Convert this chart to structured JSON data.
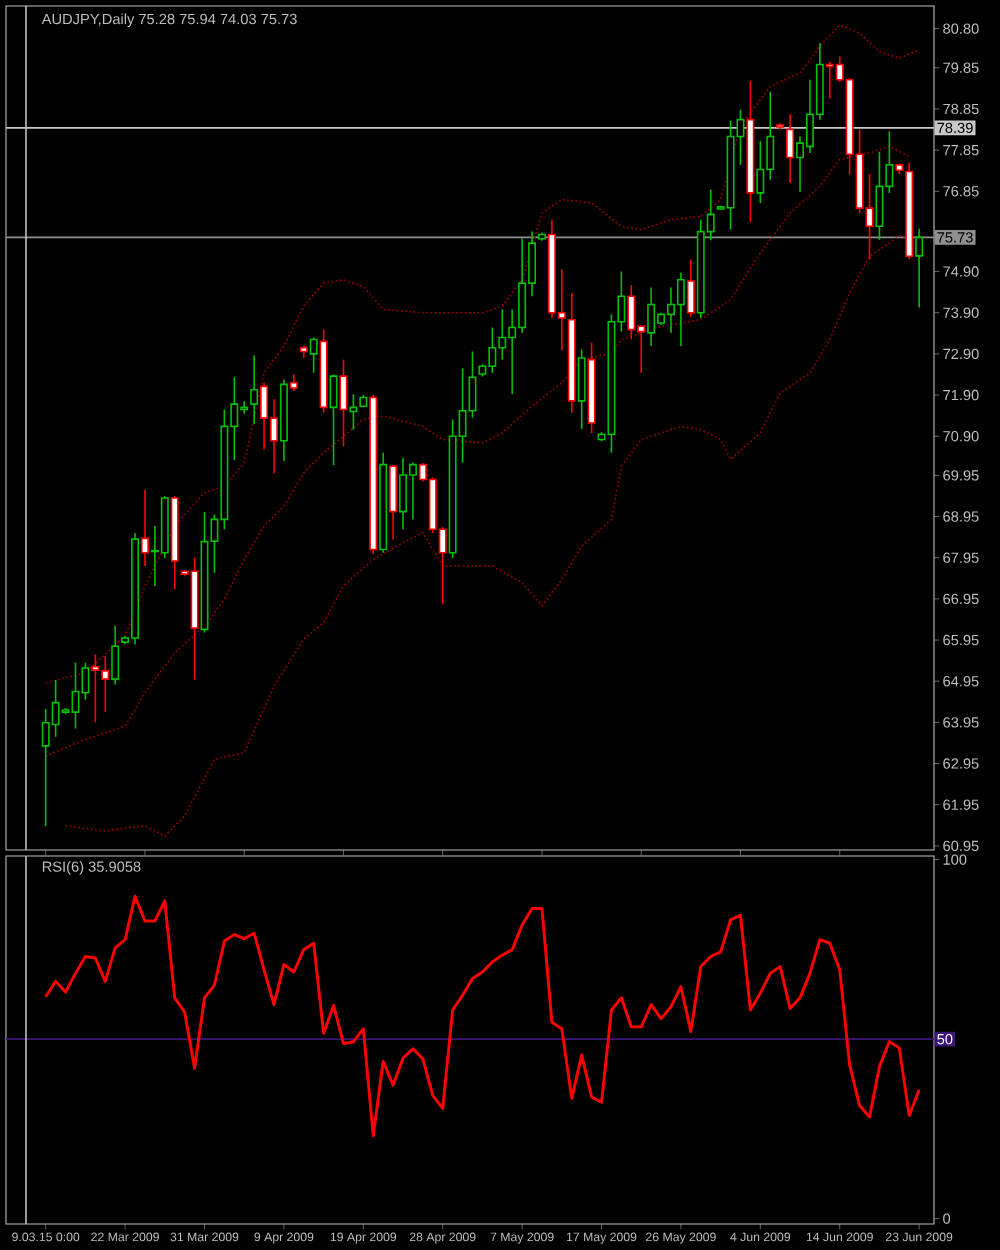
{
  "chart_data": [
    {
      "type": "candlestick",
      "title": "AUDJPY,Daily 75.28 75.94 74.03 75.73",
      "categories": [
        null,
        null,
        null,
        null,
        null,
        null,
        null,
        null,
        null,
        null,
        null,
        null,
        null,
        null,
        null,
        null,
        null,
        null,
        null,
        null,
        null,
        null,
        null,
        null,
        null,
        null,
        null,
        null,
        null,
        null,
        null,
        null,
        null,
        null,
        null,
        null,
        null,
        null,
        null,
        null,
        null,
        null,
        null,
        null,
        null,
        null,
        null,
        null,
        null,
        null,
        null,
        null,
        null,
        null,
        null,
        null,
        null,
        null,
        null,
        null,
        null,
        null,
        null,
        null,
        null,
        null,
        null,
        null,
        null,
        null,
        null,
        null,
        null,
        null,
        null,
        null,
        null,
        null,
        null,
        null,
        null,
        null,
        null,
        null,
        null,
        null,
        null,
        null,
        null
      ],
      "ohlc": [
        [
          63.38,
          64.27,
          61.43,
          63.94
        ],
        [
          63.9,
          64.98,
          63.6,
          64.43
        ],
        [
          64.2,
          64.3,
          64.15,
          64.25
        ],
        [
          64.2,
          65.4,
          63.8,
          64.7
        ],
        [
          64.67,
          65.4,
          64.5,
          65.27
        ],
        [
          65.3,
          65.6,
          63.95,
          65.22
        ],
        [
          65.2,
          65.56,
          64.2,
          65.0
        ],
        [
          65.0,
          66.3,
          64.87,
          65.8
        ],
        [
          65.9,
          66.05,
          65.85,
          66.0
        ],
        [
          66.0,
          68.55,
          65.84,
          68.4
        ],
        [
          68.42,
          69.6,
          67.75,
          68.07
        ],
        [
          68.1,
          68.72,
          67.26,
          68.12
        ],
        [
          68.07,
          69.45,
          67.94,
          69.4
        ],
        [
          69.4,
          69.45,
          67.18,
          67.87
        ],
        [
          67.62,
          67.65,
          67.5,
          67.55
        ],
        [
          67.62,
          67.95,
          64.99,
          66.24
        ],
        [
          66.21,
          69.06,
          66.13,
          68.34
        ],
        [
          68.35,
          69.0,
          67.58,
          68.88
        ],
        [
          68.88,
          71.55,
          68.64,
          71.14
        ],
        [
          71.14,
          72.33,
          70.32,
          71.68
        ],
        [
          71.55,
          71.75,
          71.45,
          71.6
        ],
        [
          71.68,
          72.87,
          71.2,
          72.03
        ],
        [
          72.11,
          72.2,
          70.58,
          71.34
        ],
        [
          71.34,
          71.8,
          70.0,
          70.79
        ],
        [
          70.79,
          72.28,
          70.3,
          72.16
        ],
        [
          72.2,
          72.4,
          72.0,
          72.07
        ],
        [
          73.05,
          73.1,
          72.8,
          72.96
        ],
        [
          72.9,
          73.3,
          72.44,
          73.25
        ],
        [
          73.2,
          73.49,
          71.47,
          71.6
        ],
        [
          71.6,
          72.4,
          70.2,
          72.36
        ],
        [
          72.36,
          72.76,
          70.66,
          71.55
        ],
        [
          71.5,
          71.92,
          71.06,
          71.6
        ],
        [
          71.63,
          71.9,
          71.6,
          71.84
        ],
        [
          71.84,
          71.9,
          68.04,
          68.15
        ],
        [
          68.15,
          70.5,
          68.07,
          70.21
        ],
        [
          70.17,
          70.2,
          68.39,
          69.07
        ],
        [
          69.07,
          70.37,
          68.64,
          69.96
        ],
        [
          69.96,
          70.26,
          68.88,
          70.21
        ],
        [
          70.21,
          70.25,
          69.8,
          69.85
        ],
        [
          69.85,
          69.9,
          68.55,
          68.64
        ],
        [
          68.64,
          68.7,
          66.82,
          68.07
        ],
        [
          68.07,
          71.31,
          67.94,
          70.9
        ],
        [
          70.9,
          72.55,
          70.26,
          71.52
        ],
        [
          71.52,
          72.96,
          71.35,
          72.33
        ],
        [
          72.41,
          72.65,
          72.35,
          72.6
        ],
        [
          72.6,
          73.54,
          72.44,
          73.05
        ],
        [
          73.05,
          73.98,
          72.76,
          73.3
        ],
        [
          73.3,
          73.98,
          71.92,
          73.54
        ],
        [
          73.54,
          75.71,
          73.41,
          74.62
        ],
        [
          74.62,
          75.87,
          74.3,
          75.59
        ],
        [
          75.7,
          75.85,
          75.65,
          75.8
        ],
        [
          75.8,
          76.16,
          73.77,
          73.9
        ],
        [
          73.9,
          74.95,
          72.99,
          73.77
        ],
        [
          73.73,
          74.38,
          71.47,
          71.76
        ],
        [
          71.76,
          73.01,
          71.08,
          72.8
        ],
        [
          72.76,
          73.17,
          70.98,
          71.22
        ],
        [
          70.82,
          71.0,
          70.78,
          70.95
        ],
        [
          70.95,
          73.86,
          70.5,
          73.68
        ],
        [
          73.68,
          74.9,
          73.44,
          74.3
        ],
        [
          74.3,
          74.57,
          73.25,
          73.49
        ],
        [
          73.57,
          73.6,
          72.44,
          73.44
        ],
        [
          73.41,
          74.51,
          73.09,
          74.1
        ],
        [
          73.65,
          73.9,
          73.6,
          73.86
        ],
        [
          73.86,
          74.51,
          73.41,
          74.1
        ],
        [
          74.1,
          74.87,
          73.09,
          74.7
        ],
        [
          74.67,
          75.19,
          73.8,
          73.9
        ],
        [
          73.9,
          76.16,
          73.77,
          75.87
        ],
        [
          75.87,
          76.89,
          75.66,
          76.29
        ],
        [
          76.42,
          76.5,
          76.4,
          76.47
        ],
        [
          76.45,
          78.56,
          75.92,
          78.18
        ],
        [
          78.18,
          78.83,
          77.49,
          78.59
        ],
        [
          78.59,
          79.53,
          76.1,
          76.81
        ],
        [
          76.81,
          78.07,
          76.56,
          77.38
        ],
        [
          77.38,
          79.27,
          77.13,
          78.18
        ],
        [
          78.46,
          78.5,
          78.35,
          78.41
        ],
        [
          78.35,
          78.72,
          77.05,
          77.67
        ],
        [
          77.67,
          78.18,
          76.84,
          78.02
        ],
        [
          77.94,
          79.56,
          77.78,
          78.72
        ],
        [
          78.72,
          80.45,
          78.59,
          79.93
        ],
        [
          79.93,
          80.0,
          79.1,
          79.88
        ],
        [
          79.93,
          80.12,
          79.5,
          79.56
        ],
        [
          79.56,
          79.6,
          77.26,
          77.75
        ],
        [
          77.75,
          78.35,
          76.32,
          76.44
        ],
        [
          76.44,
          77.26,
          75.19,
          76.0
        ],
        [
          76.0,
          77.81,
          75.67,
          76.97
        ],
        [
          76.97,
          78.3,
          76.81,
          77.49
        ],
        [
          77.49,
          77.52,
          77.26,
          77.36
        ],
        [
          77.33,
          77.54,
          75.2,
          75.27
        ],
        [
          75.28,
          75.94,
          74.03,
          75.73
        ]
      ],
      "colors": [
        "#00c000",
        "#00c000",
        "#00c000",
        "#00c000",
        "#00c000",
        "#ff0000",
        "#ff0000",
        "#00c000",
        "#00c000",
        "#00c000",
        "#ff0000",
        "#00c000",
        "#00c000",
        "#ff0000",
        "#ff0000",
        "#ff0000",
        "#00c000",
        "#00c000",
        "#00c000",
        "#00c000",
        "#00c000",
        "#00c000",
        "#ff0000",
        "#ff0000",
        "#00c000",
        "#ff0000",
        "#ff0000",
        "#00c000",
        "#ff0000",
        "#00c000",
        "#ff0000",
        "#00c000",
        "#00c000",
        "#ff0000",
        "#00c000",
        "#ff0000",
        "#00c000",
        "#00c000",
        "#ff0000",
        "#ff0000",
        "#ff0000",
        "#00c000",
        "#00c000",
        "#00c000",
        "#00c000",
        "#00c000",
        "#00c000",
        "#00c000",
        "#00c000",
        "#00c000",
        "#00c000",
        "#ff0000",
        "#ff0000",
        "#ff0000",
        "#00c000",
        "#ff0000",
        "#00c000",
        "#00c000",
        "#00c000",
        "#ff0000",
        "#ff0000",
        "#00c000",
        "#00c000",
        "#00c000",
        "#00c000",
        "#ff0000",
        "#00c000",
        "#00c000",
        "#00c000",
        "#00c000",
        "#00c000",
        "#ff0000",
        "#00c000",
        "#00c000",
        "#ff0000",
        "#ff0000",
        "#00c000",
        "#00c000",
        "#00c000",
        "#ff0000",
        "#ff0000",
        "#ff0000",
        "#ff0000",
        "#ff0000",
        "#00c000",
        "#00c000",
        "#ff0000",
        "#ff0000",
        "#00c000"
      ],
      "series": [
        {
          "type": "line",
          "color": "#a00000",
          "line_style": "dotted",
          "values": [
            64.91,
            null,
            null,
            null,
            65.16,
            null,
            null,
            null,
            66.05,
            null,
            67.26,
            null,
            null,
            68.72,
            null,
            null,
            69.53,
            null,
            69.69,
            null,
            70.25,
            null,
            72.44,
            null,
            73.09,
            null,
            74.06,
            null,
            74.62,
            null,
            74.7,
            null,
            74.54,
            null,
            73.98,
            null,
            null,
            null,
            73.9,
            null,
            null,
            null,
            null,
            null,
            73.9,
            null,
            74.06,
            null,
            74.7,
            null,
            76.32,
            null,
            76.65,
            null,
            null,
            76.57,
            null,
            null,
            76.0,
            null,
            75.92,
            null,
            null,
            76.16,
            null,
            null,
            76.24,
            null,
            76.65,
            null,
            78.43,
            null,
            null,
            79.4,
            null,
            null,
            79.72,
            null,
            80.37,
            null,
            80.89,
            null,
            80.69,
            null,
            80.24,
            null,
            80.08,
            null,
            80.29
          ]
        },
        {
          "type": "line",
          "color": "#a00000",
          "line_style": "dotted",
          "values": [
            63.13,
            null,
            null,
            null,
            63.54,
            null,
            null,
            null,
            63.86,
            null,
            64.67,
            null,
            null,
            65.64,
            null,
            null,
            66.29,
            null,
            66.94,
            null,
            67.91,
            null,
            68.72,
            null,
            69.2,
            null,
            70.01,
            null,
            70.5,
            null,
            70.9,
            null,
            71.31,
            null,
            71.39,
            null,
            null,
            null,
            71.14,
            null,
            70.82,
            null,
            null,
            null,
            70.74,
            null,
            70.98,
            null,
            null,
            71.63,
            null,
            null,
            72.2,
            null,
            72.76,
            null,
            null,
            72.92,
            73.25,
            null,
            null,
            null,
            73.57,
            null,
            null,
            null,
            73.73,
            null,
            null,
            74.22,
            null,
            null,
            75.35,
            null,
            null,
            76.32,
            null,
            null,
            76.97,
            null,
            77.62,
            null,
            null,
            77.78,
            null,
            77.94,
            null,
            77.7,
            null
          ]
        },
        {
          "type": "line",
          "color": "#a00000",
          "line_style": "dotted",
          "values": [
            null,
            null,
            61.44,
            null,
            null,
            null,
            61.31,
            null,
            null,
            null,
            61.44,
            null,
            61.19,
            null,
            61.68,
            null,
            null,
            63.05,
            null,
            null,
            63.22,
            null,
            null,
            64.83,
            null,
            null,
            65.97,
            null,
            66.37,
            null,
            67.26,
            null,
            null,
            67.91,
            null,
            null,
            68.31,
            null,
            68.56,
            null,
            67.75,
            null,
            null,
            null,
            null,
            67.75,
            null,
            null,
            67.34,
            null,
            66.78,
            null,
            67.42,
            null,
            68.23,
            null,
            null,
            68.88,
            70.17,
            null,
            70.82,
            null,
            null,
            null,
            71.14,
            null,
            71.06,
            null,
            70.82,
            70.34,
            null,
            null,
            70.98,
            null,
            71.95,
            null,
            null,
            72.44,
            null,
            73.25,
            null,
            74.38,
            null,
            75.27,
            null,
            null,
            75.76,
            null,
            75.68
          ]
        }
      ],
      "ylim": [
        60.85,
        81.35
      ],
      "yticks": [
        {
          "value": 80.8,
          "label": "80.80"
        },
        79.85,
        78.85,
        77.85,
        76.85,
        {
          "value": 74.9,
          "label": "74.90"
        },
        {
          "value": 73.9,
          "label": "73.90"
        },
        {
          "value": 72.9,
          "label": "72.90"
        },
        {
          "value": 71.9,
          "label": "71.90"
        },
        {
          "value": 70.9,
          "label": "70.90"
        },
        69.95,
        68.95,
        67.95,
        66.95,
        65.95,
        64.95,
        63.95,
        62.95,
        61.95,
        60.95
      ],
      "ref_lines": [
        {
          "axis": "y",
          "value": 78.39,
          "label": "78.39",
          "color": "#c8c8c8"
        },
        {
          "axis": "y",
          "value": 75.73,
          "label": "75.73",
          "color": "#909090"
        }
      ],
      "tick_labels": "y"
    },
    {
      "type": "line",
      "title": "RSI(6) 35.9058",
      "categories": [
        "9.03.15 0:00",
        null,
        null,
        null,
        null,
        null,
        null,
        null,
        "22 Mar 2009",
        null,
        null,
        null,
        null,
        null,
        null,
        null,
        "31 Mar 2009",
        null,
        null,
        null,
        null,
        null,
        null,
        null,
        "9 Apr 2009",
        null,
        null,
        null,
        null,
        null,
        null,
        null,
        "19 Apr 2009",
        null,
        null,
        null,
        null,
        null,
        null,
        null,
        "28 Apr 2009",
        null,
        null,
        null,
        null,
        null,
        null,
        null,
        "7 May 2009",
        null,
        null,
        null,
        null,
        null,
        null,
        null,
        "17 May 2009",
        null,
        null,
        null,
        null,
        null,
        null,
        null,
        "26 May 2009",
        null,
        null,
        null,
        null,
        null,
        null,
        null,
        "4 Jun 2009",
        null,
        null,
        null,
        null,
        null,
        null,
        null,
        "14 Jun 2009",
        null,
        null,
        null,
        null,
        null,
        null,
        null,
        "23 Jun 2009"
      ],
      "series": [
        {
          "color": "#ff0000",
          "values": [
            61.8,
            66.1,
            63.1,
            68.3,
            73.0,
            72.6,
            66.1,
            75.4,
            77.7,
            89.8,
            82.9,
            82.9,
            88.5,
            61.5,
            57.5,
            41.9,
            61.5,
            65.0,
            77.3,
            79.1,
            78.0,
            79.5,
            69.3,
            59.6,
            70.8,
            68.7,
            74.9,
            76.7,
            51.6,
            59.4,
            48.8,
            49.2,
            52.9,
            23.1,
            43.8,
            37.2,
            44.7,
            47.3,
            44.5,
            34.3,
            30.7,
            58.1,
            62.2,
            66.9,
            68.7,
            71.5,
            73.4,
            74.9,
            81.8,
            86.4,
            86.4,
            54.7,
            52.9,
            33.5,
            45.6,
            33.9,
            32.4,
            58.1,
            61.5,
            53.4,
            53.4,
            59.6,
            55.7,
            59.0,
            64.6,
            52.1,
            70.2,
            73.0,
            74.3,
            83.2,
            84.5,
            58.1,
            62.8,
            68.3,
            70.2,
            58.5,
            61.5,
            68.3,
            77.7,
            76.7,
            69.3,
            42.8,
            31.5,
            28.3,
            42.3,
            49.3,
            47.5,
            28.7,
            35.9
          ]
        }
      ],
      "ylim": [
        -1.5,
        101
      ],
      "yticks": [
        0,
        100
      ],
      "ref_lines": [
        {
          "axis": "y",
          "value": 50,
          "label": "50",
          "color": "#3c1478"
        }
      ]
    }
  ]
}
